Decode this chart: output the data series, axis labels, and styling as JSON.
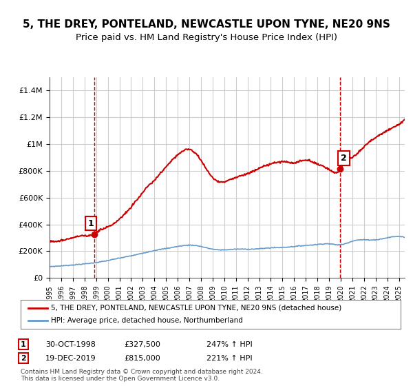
{
  "title": "5, THE DREY, PONTELAND, NEWCASTLE UPON TYNE, NE20 9NS",
  "subtitle": "Price paid vs. HM Land Registry's House Price Index (HPI)",
  "title_fontsize": 11,
  "subtitle_fontsize": 9.5,
  "background_color": "#ffffff",
  "plot_bg_color": "#ffffff",
  "grid_color": "#cccccc",
  "ylim": [
    0,
    1500000
  ],
  "yticks": [
    0,
    200000,
    400000,
    600000,
    800000,
    1000000,
    1200000,
    1400000
  ],
  "ytick_labels": [
    "£0",
    "£200K",
    "£400K",
    "£600K",
    "£800K",
    "£1M",
    "£1.2M",
    "£1.4M"
  ],
  "sale1": {
    "date_num": 1998.83,
    "price": 327500,
    "label": "1"
  },
  "sale2": {
    "date_num": 2019.97,
    "price": 815000,
    "label": "2"
  },
  "sale1_vline_color": "#cc0000",
  "sale2_vline_color": "#cc0000",
  "property_line_color": "#cc0000",
  "hpi_line_color": "#6699cc",
  "legend_text1": "5, THE DREY, PONTELAND, NEWCASTLE UPON TYNE, NE20 9NS (detached house)",
  "legend_text2": "HPI: Average price, detached house, Northumberland",
  "annotation1": [
    "1",
    "30-OCT-1998",
    "£327,500",
    "247% ↑ HPI"
  ],
  "annotation2": [
    "2",
    "19-DEC-2019",
    "£815,000",
    "221% ↑ HPI"
  ],
  "footer": "Contains HM Land Registry data © Crown copyright and database right 2024.\nThis data is licensed under the Open Government Licence v3.0.",
  "xmin": 1995.0,
  "xmax": 2025.5
}
